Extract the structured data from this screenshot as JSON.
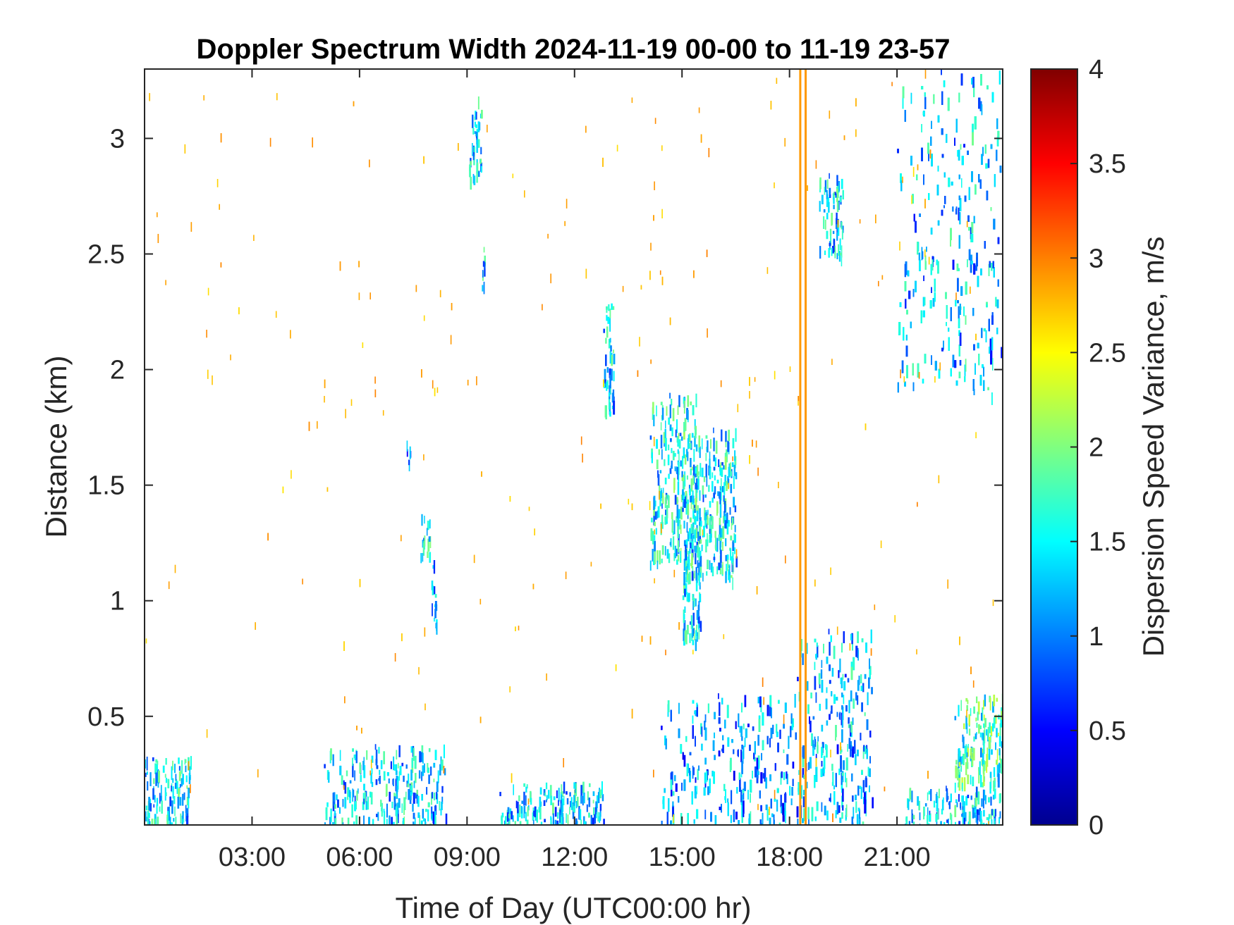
{
  "chart_data": {
    "type": "heatmap",
    "title": "Doppler Spectrum Width 2024-11-19 00-00 to 11-19 23-57",
    "xlabel": "Time of Day (UTC00:00 hr)",
    "ylabel": "Distance (km)",
    "colorbar_label": "Dispersion Speed Variance, m/s",
    "x_range_hours": [
      0,
      23.95
    ],
    "y_range_km": [
      0.03,
      3.3
    ],
    "x_ticks": [
      {
        "hour": 3,
        "label": "03:00"
      },
      {
        "hour": 6,
        "label": "06:00"
      },
      {
        "hour": 9,
        "label": "09:00"
      },
      {
        "hour": 12,
        "label": "12:00"
      },
      {
        "hour": 15,
        "label": "15:00"
      },
      {
        "hour": 18,
        "label": "18:00"
      },
      {
        "hour": 21,
        "label": "21:00"
      }
    ],
    "y_ticks": [
      {
        "value": 0.5,
        "label": "0.5"
      },
      {
        "value": 1,
        "label": "1"
      },
      {
        "value": 1.5,
        "label": "1.5"
      },
      {
        "value": 2,
        "label": "2"
      },
      {
        "value": 2.5,
        "label": "2.5"
      },
      {
        "value": 3,
        "label": "3"
      }
    ],
    "colorbar_range": [
      0,
      4
    ],
    "colorbar_ticks": [
      {
        "value": 0,
        "label": "0"
      },
      {
        "value": 0.5,
        "label": "0.5"
      },
      {
        "value": 1,
        "label": "1"
      },
      {
        "value": 1.5,
        "label": "1.5"
      },
      {
        "value": 2,
        "label": "2"
      },
      {
        "value": 2.5,
        "label": "2.5"
      },
      {
        "value": 3,
        "label": "3"
      },
      {
        "value": 3.5,
        "label": "3.5"
      },
      {
        "value": 4,
        "label": "4"
      }
    ],
    "colormap": "jet",
    "grid": false,
    "echo_regions": [
      {
        "t0": 0.0,
        "t1": 1.3,
        "h0": 0.03,
        "h1": 0.33,
        "value": 1.4
      },
      {
        "t0": 5.0,
        "t1": 8.4,
        "h0": 0.03,
        "h1": 0.38,
        "value": 1.3
      },
      {
        "t0": 9.9,
        "t1": 12.8,
        "h0": 0.03,
        "h1": 0.22,
        "value": 1.3
      },
      {
        "t0": 14.4,
        "t1": 18.2,
        "h0": 0.03,
        "h1": 0.6,
        "value": 1.1
      },
      {
        "t0": 18.2,
        "t1": 20.3,
        "h0": 0.03,
        "h1": 0.88,
        "value": 1.2
      },
      {
        "t0": 21.2,
        "t1": 23.95,
        "h0": 0.03,
        "h1": 0.2,
        "value": 1.3
      },
      {
        "t0": 22.6,
        "t1": 23.95,
        "h0": 0.2,
        "h1": 0.6,
        "value": 1.7
      },
      {
        "t0": 14.1,
        "t1": 15.4,
        "h0": 1.15,
        "h1": 1.9,
        "value": 1.45
      },
      {
        "t0": 15.0,
        "t1": 15.5,
        "h0": 0.8,
        "h1": 1.6,
        "value": 1.4
      },
      {
        "t0": 15.4,
        "t1": 16.5,
        "h0": 1.1,
        "h1": 1.75,
        "value": 1.4
      },
      {
        "t0": 12.8,
        "t1": 13.1,
        "h0": 1.8,
        "h1": 2.3,
        "value": 1.35
      },
      {
        "t0": 9.05,
        "t1": 9.4,
        "h0": 2.8,
        "h1": 3.2,
        "value": 1.4
      },
      {
        "t0": 7.7,
        "t1": 8.0,
        "h0": 1.2,
        "h1": 1.4,
        "value": 1.45
      },
      {
        "t0": 8.0,
        "t1": 8.15,
        "h0": 0.85,
        "h1": 1.2,
        "value": 1.1
      },
      {
        "t0": 18.8,
        "t1": 19.5,
        "h0": 2.5,
        "h1": 2.85,
        "value": 1.3
      },
      {
        "t0": 21.0,
        "t1": 23.9,
        "h0": 1.9,
        "h1": 3.3,
        "value": 1.25
      },
      {
        "t0": 9.4,
        "t1": 9.5,
        "h0": 2.3,
        "h1": 2.6,
        "value": 1.3
      },
      {
        "t0": 7.3,
        "t1": 7.4,
        "h0": 1.6,
        "h1": 1.7,
        "value": 1.2
      }
    ],
    "vertical_lines": [
      {
        "t": 18.3,
        "h0": 0.03,
        "h1": 3.3,
        "value": 2.9
      },
      {
        "t": 18.45,
        "h0": 0.03,
        "h1": 3.3,
        "value": 2.9
      }
    ]
  }
}
